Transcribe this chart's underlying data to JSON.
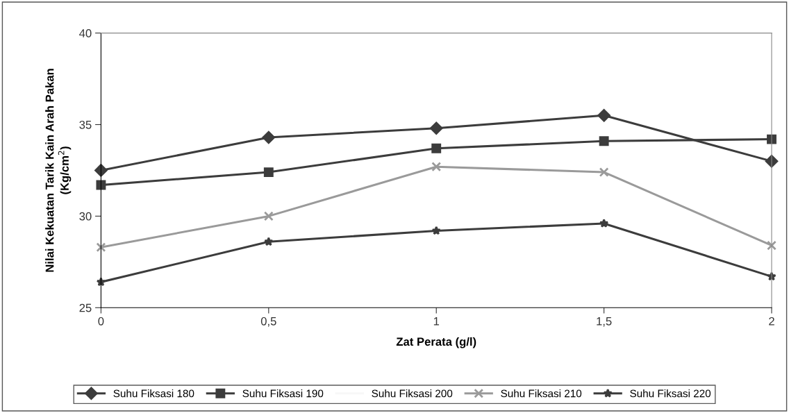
{
  "chart_data": {
    "type": "line",
    "xlabel": "Zat Perata (g/l)",
    "ylabel": "Nilai Kekuatan Tarik Kain Arah Pakan\n(Kg/cm$^{2}$)",
    "x": [
      0,
      0.5,
      1,
      1.5,
      2
    ],
    "xlim": [
      0,
      2
    ],
    "xticks": [
      0,
      {
        "value": 0.5,
        "label": "0,5"
      },
      1,
      {
        "value": 1.5,
        "label": "1,5"
      },
      2
    ],
    "ylim": [
      25,
      40
    ],
    "yticks": [
      25,
      30,
      35,
      40
    ],
    "grid": false,
    "legend": "bottom",
    "series": [
      {
        "name": "Suhu Fiksasi 180",
        "color": "#3c3c3c",
        "marker": "diamond",
        "values": [
          32.5,
          34.3,
          34.8,
          35.5,
          33.0
        ]
      },
      {
        "name": "Suhu Fiksasi 190",
        "color": "#3c3c3c",
        "marker": "square",
        "values": [
          31.7,
          32.4,
          33.7,
          34.1,
          34.2
        ]
      },
      {
        "name": "Suhu Fiksasi 200",
        "color": "#f7f7f7",
        "marker": "none",
        "values": [
          null,
          null,
          null,
          null,
          null
        ]
      },
      {
        "name": "Suhu Fiksasi 210",
        "color": "#9a9a9a",
        "marker": "cross",
        "values": [
          28.3,
          30.0,
          32.7,
          32.4,
          28.4
        ]
      },
      {
        "name": "Suhu Fiksasi 220",
        "color": "#3c3c3c",
        "marker": "star",
        "values": [
          26.4,
          28.6,
          29.2,
          29.6,
          26.7
        ]
      }
    ]
  }
}
